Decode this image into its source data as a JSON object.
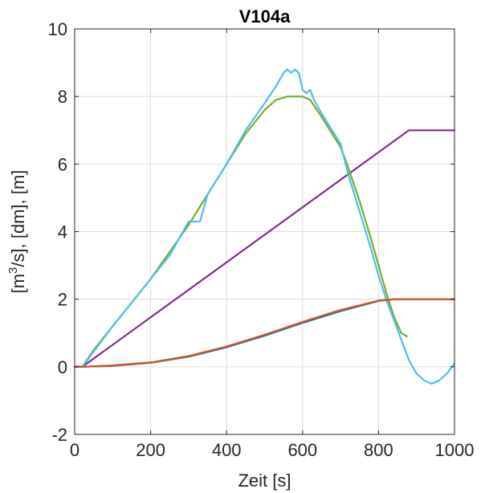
{
  "chart_data": {
    "type": "line",
    "title": "V104a",
    "xlabel": "Zeit [s]",
    "ylabel_parts": [
      "[m",
      "3",
      "/s], [dm], [m]"
    ],
    "xlim": [
      0,
      1000
    ],
    "ylim": [
      -2,
      10
    ],
    "xticks": [
      0,
      200,
      400,
      600,
      800,
      1000
    ],
    "yticks": [
      -2,
      0,
      2,
      4,
      6,
      8,
      10
    ],
    "xtick_labels": [
      "0",
      "200",
      "400",
      "600",
      "800",
      "1000"
    ],
    "ytick_labels": [
      "-2",
      "0",
      "2",
      "4",
      "6",
      "8",
      "10"
    ],
    "grid": true,
    "colors": {
      "green": "#77AC30",
      "cyan": "#4DBEEE",
      "purple": "#7E2F8E",
      "blue": "#0072BD",
      "orange": "#D95319"
    },
    "series": [
      {
        "color": "purple",
        "x": [
          0,
          20,
          880,
          1000
        ],
        "y": [
          0,
          0,
          7,
          7
        ]
      },
      {
        "color": "green",
        "x": [
          0,
          20,
          50,
          100,
          150,
          200,
          250,
          300,
          350,
          400,
          450,
          500,
          530,
          560,
          580,
          600,
          620,
          650,
          700,
          720,
          750,
          780,
          800,
          820,
          840,
          860,
          875
        ],
        "y": [
          0,
          0,
          0.5,
          1.2,
          1.9,
          2.6,
          3.4,
          4.2,
          5.1,
          6.0,
          6.9,
          7.6,
          7.9,
          8.0,
          8.0,
          8.0,
          7.9,
          7.4,
          6.5,
          5.9,
          4.9,
          3.8,
          3.0,
          2.2,
          1.5,
          1.0,
          0.9
        ]
      },
      {
        "color": "cyan",
        "x": [
          0,
          20,
          40,
          60,
          100,
          150,
          200,
          250,
          300,
          330,
          350,
          400,
          450,
          500,
          530,
          550,
          560,
          570,
          580,
          590,
          600,
          610,
          620,
          630,
          650,
          700,
          720,
          750,
          780,
          800,
          820,
          840,
          860,
          880,
          900,
          920,
          940,
          960,
          980,
          1000
        ],
        "y": [
          0,
          0,
          0.3,
          0.6,
          1.2,
          1.9,
          2.6,
          3.3,
          4.3,
          4.3,
          5.1,
          6.0,
          7.0,
          7.8,
          8.3,
          8.7,
          8.8,
          8.7,
          8.8,
          8.7,
          8.2,
          8.1,
          8.2,
          7.9,
          7.5,
          6.6,
          5.7,
          4.6,
          3.5,
          2.7,
          2.0,
          1.4,
          0.8,
          0.2,
          -0.2,
          -0.4,
          -0.5,
          -0.4,
          -0.2,
          0.1
        ]
      },
      {
        "color": "blue",
        "x": [
          0,
          20,
          100,
          200,
          300,
          400,
          500,
          600,
          700,
          800,
          840,
          880,
          1000
        ],
        "y": [
          0,
          0,
          0.03,
          0.12,
          0.3,
          0.58,
          0.92,
          1.3,
          1.65,
          1.95,
          2.0,
          2.0,
          2.0
        ]
      },
      {
        "color": "orange",
        "x": [
          0,
          20,
          100,
          200,
          300,
          400,
          500,
          600,
          700,
          800,
          840,
          880,
          1000
        ],
        "y": [
          0,
          0,
          0.04,
          0.13,
          0.32,
          0.6,
          0.95,
          1.33,
          1.68,
          1.96,
          2.0,
          2.0,
          2.0
        ]
      }
    ]
  }
}
